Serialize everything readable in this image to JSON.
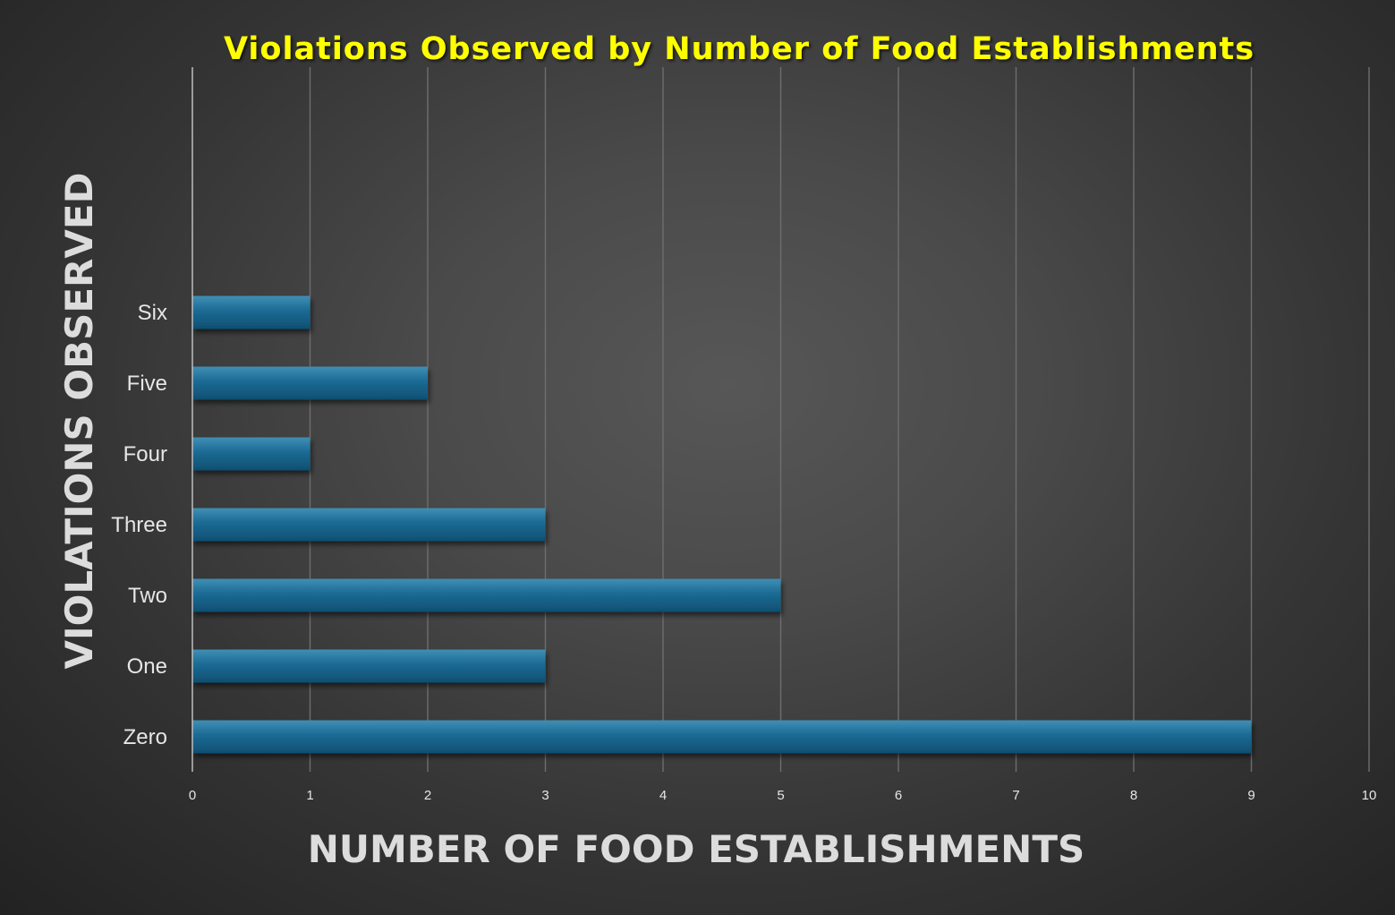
{
  "chart_data": {
    "type": "bar",
    "orientation": "horizontal",
    "title": "Violations Observed by Number of Food Establishments",
    "xlabel": "NUMBER OF FOOD ESTABLISHMENTS",
    "ylabel": "VIOLATIONS OBSERVED",
    "categories": [
      "Zero",
      "One",
      "Two",
      "Three",
      "Four",
      "Five",
      "Six"
    ],
    "values": [
      9,
      3,
      5,
      3,
      1,
      2,
      1
    ],
    "xlim": [
      0,
      10
    ],
    "xticks": [
      "0",
      "1",
      "2",
      "3",
      "4",
      "5",
      "6",
      "7",
      "8",
      "9",
      "10"
    ],
    "grid": true,
    "legend": "none",
    "colors": {
      "bar": "#1b6a94",
      "bar_highlight": "#3f8fb5",
      "bar_shadow": "#0f4f72",
      "title": "#ffff00",
      "gridline": "#6e6e6e"
    }
  }
}
